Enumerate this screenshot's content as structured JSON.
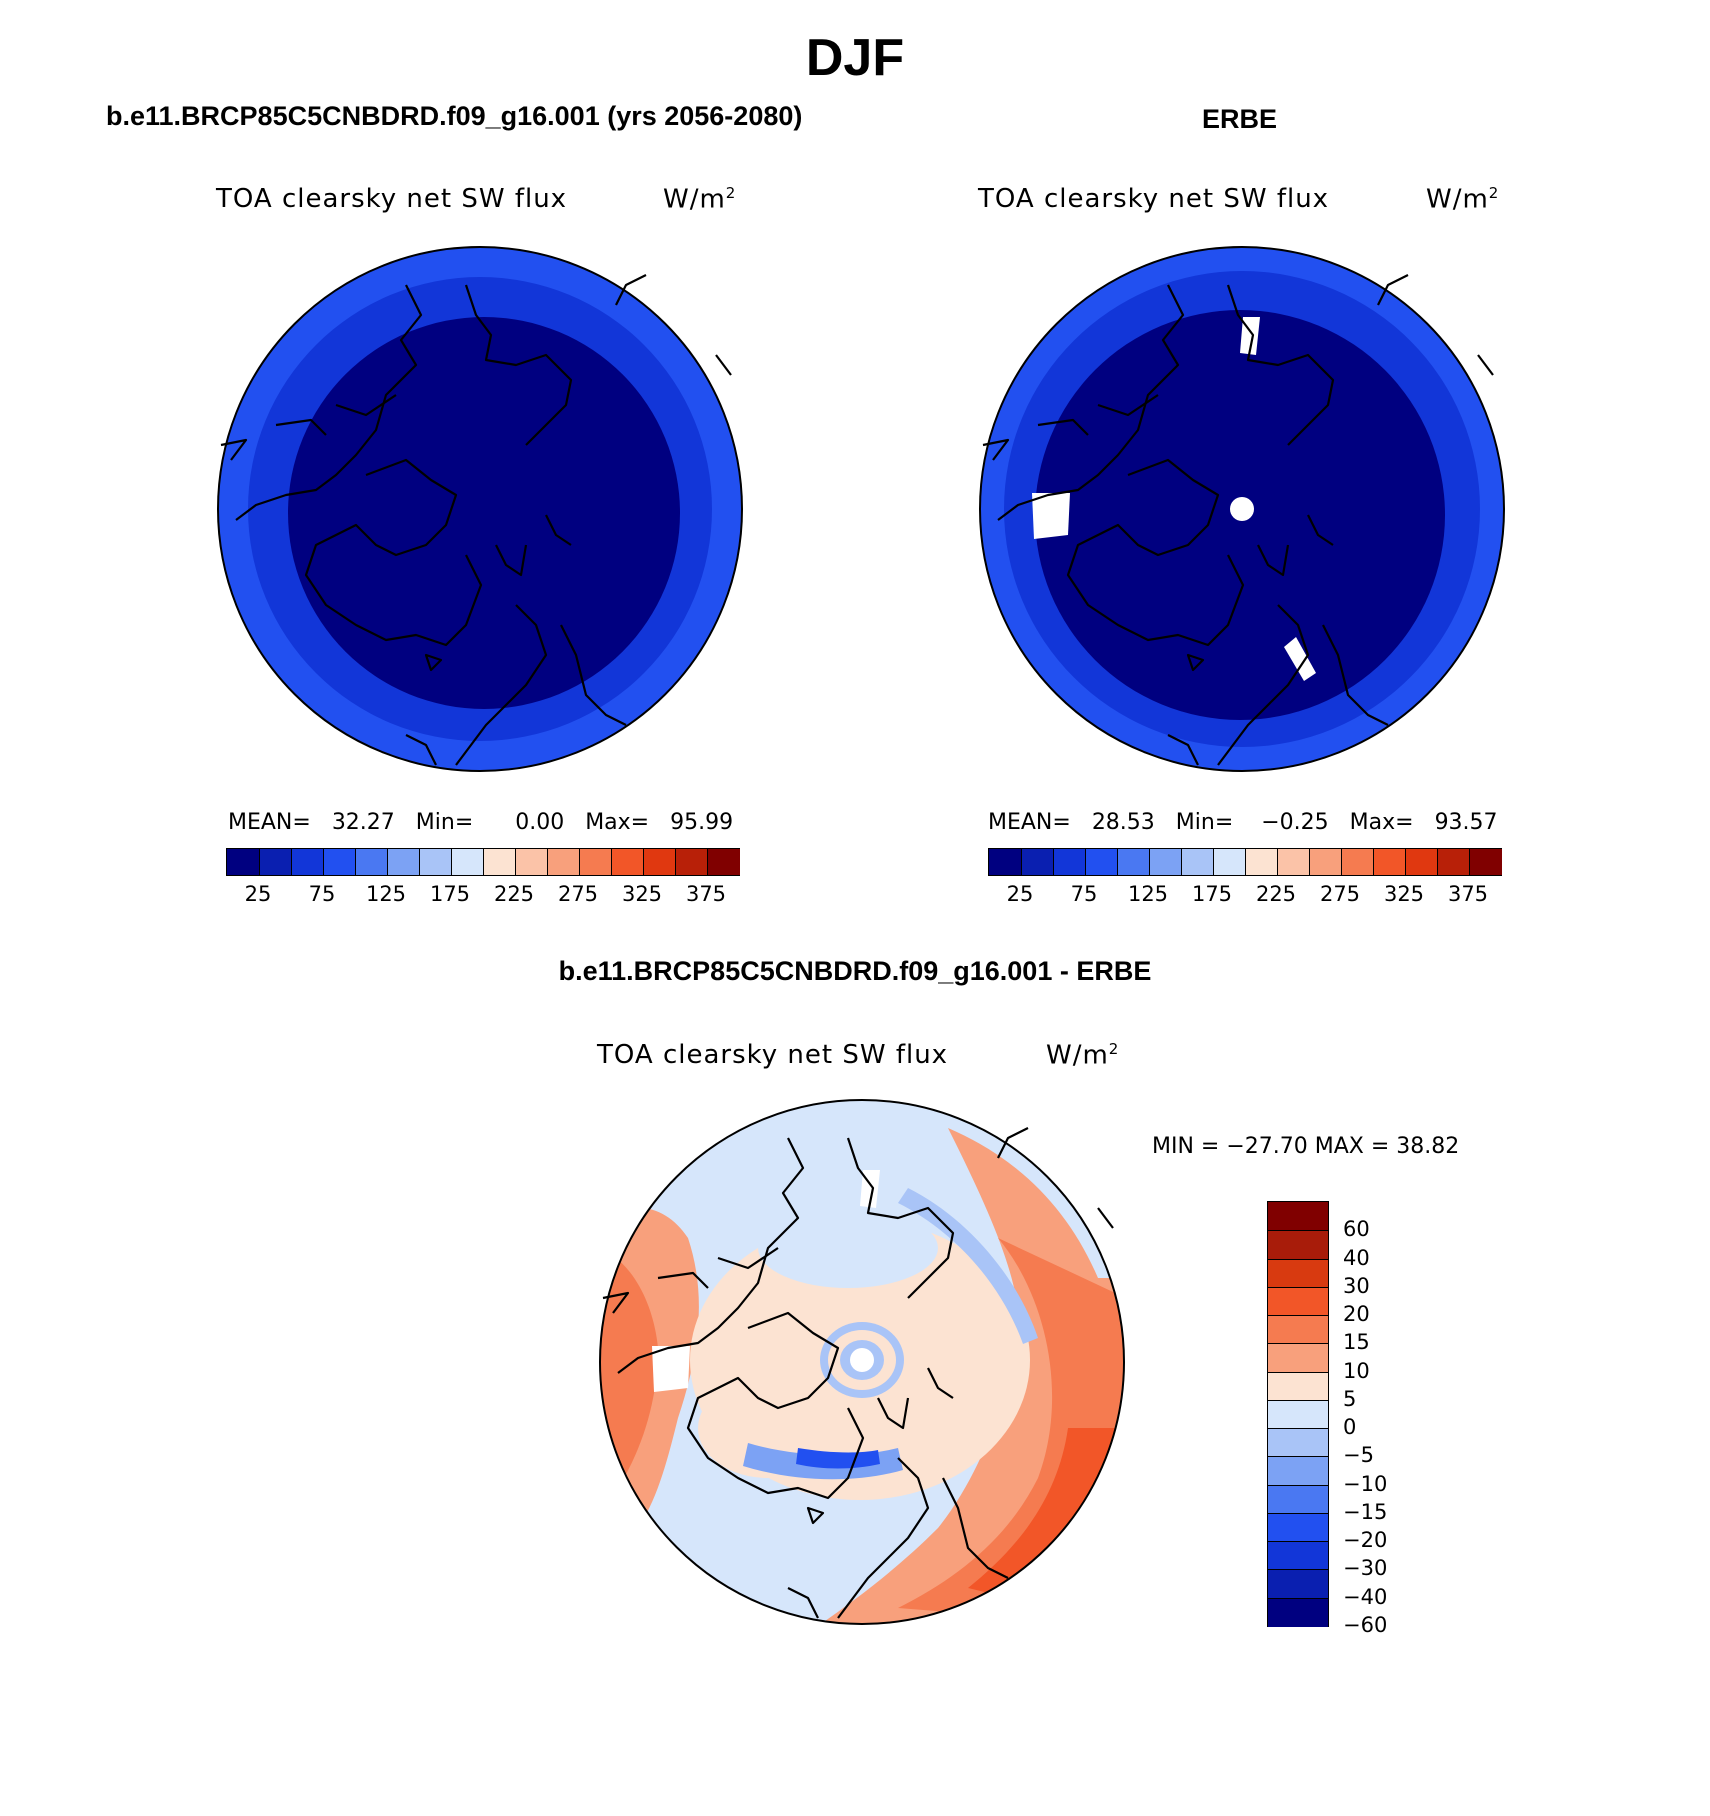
{
  "figure": {
    "title": "DJF"
  },
  "panels": {
    "model": {
      "title": "b.e11.BRCP85C5CNBDRD.f09_g16.001 (yrs 2056-2080)",
      "variable": "TOA clearsky net SW flux",
      "units_base": "W/m",
      "units_exp": "2",
      "stats": {
        "mean_label": "MEAN=",
        "mean": "32.27",
        "min_label": "Min=",
        "min": "0.00",
        "max_label": "Max=",
        "max": "95.99"
      }
    },
    "obs": {
      "title": "ERBE",
      "variable": "TOA clearsky net SW flux",
      "units_base": "W/m",
      "units_exp": "2",
      "stats": {
        "mean_label": "MEAN=",
        "mean": "28.53",
        "min_label": "Min=",
        "min": "−0.25",
        "max_label": "Max=",
        "max": "93.57"
      }
    },
    "diff": {
      "title": "b.e11.BRCP85C5CNBDRD.f09_g16.001 - ERBE",
      "variable": "TOA clearsky net SW flux",
      "units_base": "W/m",
      "units_exp": "2",
      "minmax": "MIN = −27.70 MAX =   38.82"
    }
  },
  "abs_colorbar": {
    "colors": [
      "#000080",
      "#0a1fb0",
      "#1236d8",
      "#2250f0",
      "#4a78f2",
      "#7ca2f4",
      "#a9c4f7",
      "#d6e6fb",
      "#fce3d2",
      "#fbc3a8",
      "#f8a07c",
      "#f57b50",
      "#f25628",
      "#e03810",
      "#b82008",
      "#800000"
    ],
    "ticks": [
      "25",
      "75",
      "125",
      "175",
      "225",
      "275",
      "325",
      "375"
    ]
  },
  "diff_colorbar": {
    "colors_top_to_bottom": [
      "#800000",
      "#a81c0a",
      "#d83a10",
      "#f25628",
      "#f57b50",
      "#f8a07c",
      "#fce3d2",
      "#d6e6fb",
      "#a9c4f7",
      "#7ca2f4",
      "#4a78f2",
      "#2250f0",
      "#1236d8",
      "#0a1fb0",
      "#000080"
    ],
    "ticks": [
      "60",
      "40",
      "30",
      "20",
      "15",
      "10",
      "5",
      "0",
      "−5",
      "−10",
      "−15",
      "−20",
      "−30",
      "−40",
      "−60"
    ]
  }
}
